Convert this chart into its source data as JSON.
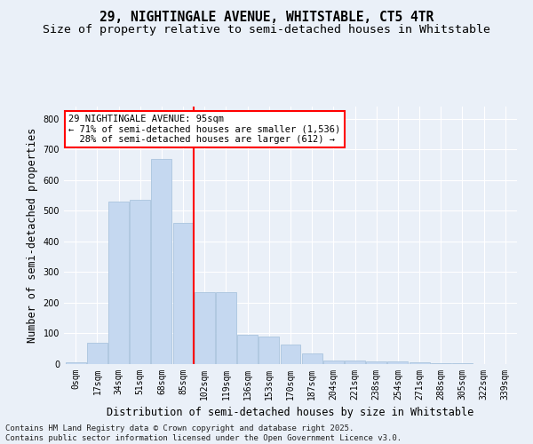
{
  "title": "29, NIGHTINGALE AVENUE, WHITSTABLE, CT5 4TR",
  "subtitle": "Size of property relative to semi-detached houses in Whitstable",
  "xlabel": "Distribution of semi-detached houses by size in Whitstable",
  "ylabel": "Number of semi-detached properties",
  "bins": [
    "0sqm",
    "17sqm",
    "34sqm",
    "51sqm",
    "68sqm",
    "85sqm",
    "102sqm",
    "119sqm",
    "136sqm",
    "153sqm",
    "170sqm",
    "187sqm",
    "204sqm",
    "221sqm",
    "238sqm",
    "254sqm",
    "271sqm",
    "288sqm",
    "305sqm",
    "322sqm",
    "339sqm"
  ],
  "values": [
    5,
    70,
    530,
    535,
    670,
    460,
    235,
    235,
    95,
    90,
    65,
    35,
    12,
    12,
    8,
    8,
    5,
    4,
    2,
    0,
    0
  ],
  "bar_color": "#c5d8f0",
  "bar_edge_color": "#aac4de",
  "vline_color": "red",
  "vline_pos": 5.5,
  "property_label": "29 NIGHTINGALE AVENUE: 95sqm",
  "pct_smaller": 71,
  "n_smaller": 1536,
  "pct_larger": 28,
  "n_larger": 612,
  "ylim": [
    0,
    840
  ],
  "yticks": [
    0,
    100,
    200,
    300,
    400,
    500,
    600,
    700,
    800
  ],
  "footnote1": "Contains HM Land Registry data © Crown copyright and database right 2025.",
  "footnote2": "Contains public sector information licensed under the Open Government Licence v3.0.",
  "bg_color": "#eaf0f8",
  "grid_color": "#ffffff",
  "title_fontsize": 10.5,
  "subtitle_fontsize": 9.5,
  "label_fontsize": 8.5,
  "tick_fontsize": 7,
  "annot_fontsize": 7.5,
  "footnote_fontsize": 6.5
}
